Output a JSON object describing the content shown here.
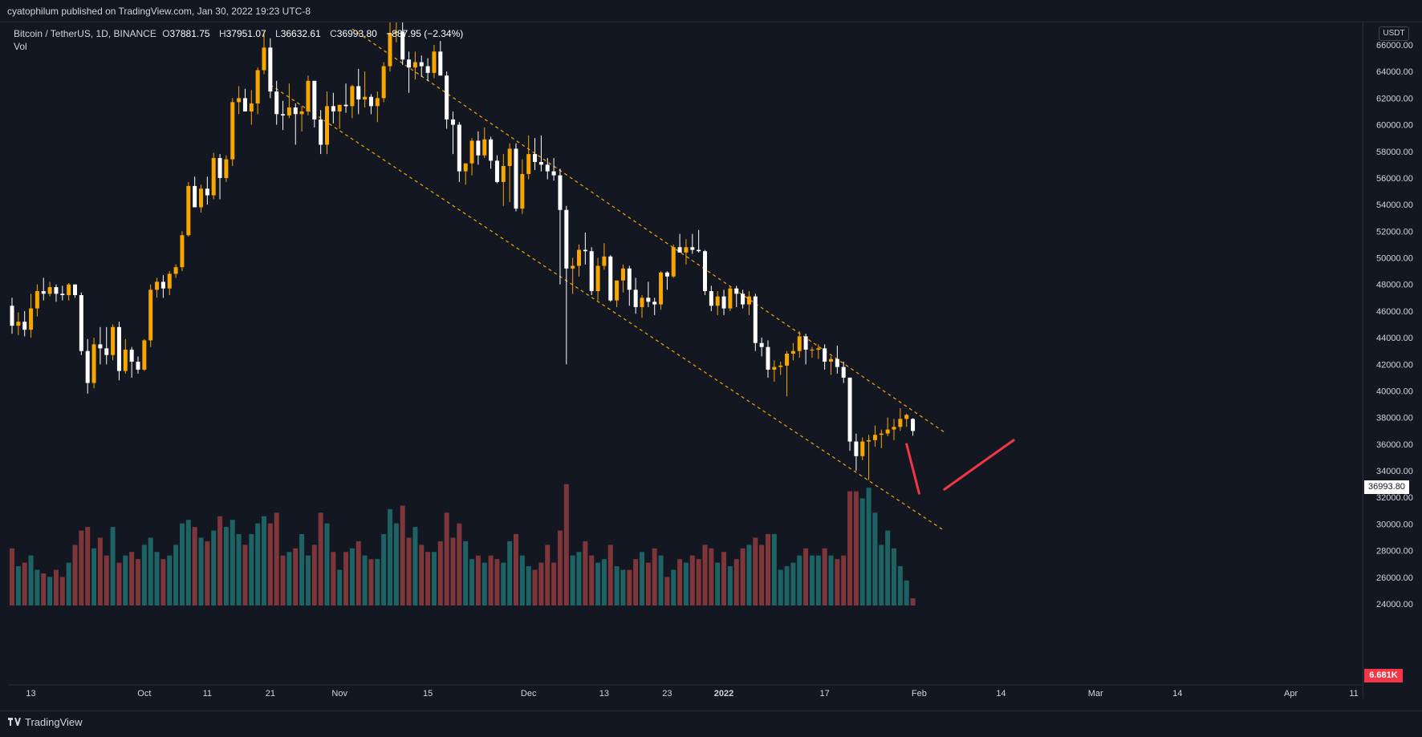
{
  "header": {
    "publisher_text": "cyatophilum published on TradingView.com, Jan 30, 2022 19:23 UTC-8"
  },
  "legend": {
    "symbol": "Bitcoin / TetherUS, 1D, BINANCE",
    "open_key": "O",
    "open_val": "37881.75",
    "high_key": "H",
    "high_val": "37951.07",
    "low_key": "L",
    "low_val": "36632.61",
    "close_key": "C",
    "close_val": "36993.80",
    "change": "−887.95 (−2.34%)",
    "volume_label": "Vol"
  },
  "price_scale": {
    "currency": "USDT",
    "last_price": "36993.80",
    "last_volume": "6.681K"
  },
  "footer": {
    "brand": "TradingView"
  },
  "colors": {
    "background": "#131722",
    "candle_up": "#f7a600",
    "candle_down": "#ffffff",
    "volume_up": "#1f6b6b",
    "volume_down": "#8b3a3e",
    "channel": "#f7a600",
    "annotation": "#f23645"
  },
  "chart_data": {
    "type": "candlestick",
    "title": "Bitcoin / TetherUS, 1D, BINANCE",
    "ylim": [
      23000,
      67500
    ],
    "yticks": [
      24000,
      26000,
      28000,
      30000,
      32000,
      34000,
      36000,
      38000,
      40000,
      42000,
      44000,
      46000,
      48000,
      50000,
      52000,
      54000,
      56000,
      58000,
      60000,
      62000,
      64000,
      66000
    ],
    "ytick_labels": [
      "24000.00",
      "26000.00",
      "28000.00",
      "30000.00",
      "32000.00",
      "34000.00",
      "36000.00",
      "38000.00",
      "40000.00",
      "42000.00",
      "44000.00",
      "46000.00",
      "48000.00",
      "50000.00",
      "52000.00",
      "54000.00",
      "56000.00",
      "58000.00",
      "60000.00",
      "62000.00",
      "64000.00",
      "66000.00"
    ],
    "x_start_date": "2021-09-10",
    "xticks": [
      {
        "date": "2021-09-13",
        "label": "13",
        "bold": false
      },
      {
        "date": "2021-10-01",
        "label": "Oct",
        "bold": false
      },
      {
        "date": "2021-10-11",
        "label": "11",
        "bold": false
      },
      {
        "date": "2021-10-21",
        "label": "21",
        "bold": false
      },
      {
        "date": "2021-11-01",
        "label": "Nov",
        "bold": false
      },
      {
        "date": "2021-11-15",
        "label": "15",
        "bold": false
      },
      {
        "date": "2021-12-01",
        "label": "Dec",
        "bold": false
      },
      {
        "date": "2021-12-13",
        "label": "13",
        "bold": false
      },
      {
        "date": "2021-12-23",
        "label": "23",
        "bold": false
      },
      {
        "date": "2022-01-01",
        "label": "2022",
        "bold": true
      },
      {
        "date": "2022-01-17",
        "label": "17",
        "bold": false
      },
      {
        "date": "2022-02-01",
        "label": "Feb",
        "bold": false
      },
      {
        "date": "2022-02-14",
        "label": "14",
        "bold": false
      },
      {
        "date": "2022-03-01",
        "label": "Mar",
        "bold": false
      },
      {
        "date": "2022-03-14",
        "label": "14",
        "bold": false
      },
      {
        "date": "2022-04-01",
        "label": "Apr",
        "bold": false
      },
      {
        "date": "2022-04-11",
        "label": "11",
        "bold": false
      }
    ],
    "candles": [
      [
        46400,
        47000,
        44300,
        44900,
        16
      ],
      [
        44900,
        45900,
        44200,
        45200,
        11
      ],
      [
        45200,
        46000,
        44100,
        44600,
        12
      ],
      [
        44600,
        47300,
        44000,
        46200,
        14
      ],
      [
        46200,
        48000,
        45600,
        47500,
        10
      ],
      [
        47500,
        48500,
        46800,
        47300,
        9
      ],
      [
        47300,
        48200,
        47100,
        47800,
        8
      ],
      [
        47800,
        48000,
        46700,
        47300,
        10
      ],
      [
        47300,
        47900,
        46800,
        47200,
        8
      ],
      [
        47200,
        48100,
        46800,
        48000,
        12
      ],
      [
        48000,
        48000,
        47000,
        47200,
        17
      ],
      [
        47200,
        47400,
        42700,
        43000,
        21
      ],
      [
        43000,
        43900,
        39800,
        40600,
        22
      ],
      [
        40600,
        44000,
        40200,
        43500,
        16
      ],
      [
        43500,
        44800,
        42000,
        43200,
        19
      ],
      [
        43200,
        44800,
        42000,
        42700,
        14
      ],
      [
        42700,
        45000,
        42300,
        44800,
        22
      ],
      [
        44800,
        45200,
        40800,
        41500,
        12
      ],
      [
        41500,
        43900,
        41300,
        43100,
        14
      ],
      [
        43100,
        43300,
        41000,
        42200,
        15
      ],
      [
        42200,
        42600,
        41300,
        41600,
        13
      ],
      [
        41600,
        43900,
        41500,
        43800,
        17
      ],
      [
        43800,
        48000,
        43300,
        47600,
        19
      ],
      [
        47600,
        48500,
        47000,
        48200,
        15
      ],
      [
        48200,
        48700,
        47000,
        47700,
        13
      ],
      [
        47700,
        49000,
        47200,
        48800,
        14
      ],
      [
        48800,
        49500,
        48500,
        49300,
        17
      ],
      [
        49300,
        52000,
        49000,
        51700,
        23
      ],
      [
        51700,
        55700,
        51600,
        55400,
        24
      ],
      [
        55400,
        56100,
        53900,
        53800,
        22
      ],
      [
        53800,
        55500,
        53400,
        55200,
        19
      ],
      [
        55200,
        56100,
        54000,
        54700,
        18
      ],
      [
        54700,
        57900,
        54400,
        57500,
        21
      ],
      [
        57500,
        57800,
        54400,
        56000,
        25
      ],
      [
        56000,
        57700,
        55700,
        57400,
        22
      ],
      [
        57400,
        62000,
        56900,
        61700,
        24
      ],
      [
        61700,
        62900,
        60800,
        62000,
        20
      ],
      [
        62000,
        62700,
        61300,
        61000,
        17
      ],
      [
        61000,
        62600,
        60000,
        61600,
        20
      ],
      [
        61600,
        64300,
        60800,
        64100,
        23
      ],
      [
        64100,
        67000,
        63800,
        65800,
        25
      ],
      [
        65800,
        66500,
        62000,
        62500,
        23
      ],
      [
        62500,
        63300,
        60000,
        60800,
        26
      ],
      [
        60800,
        61800,
        59600,
        60700,
        14
      ],
      [
        60700,
        63100,
        60500,
        61300,
        15
      ],
      [
        61300,
        61600,
        58500,
        60800,
        16
      ],
      [
        60800,
        61400,
        59500,
        61000,
        20
      ],
      [
        61000,
        63700,
        60700,
        63300,
        14
      ],
      [
        63300,
        63300,
        59800,
        60400,
        17
      ],
      [
        60400,
        61100,
        57800,
        58500,
        26
      ],
      [
        58500,
        62500,
        57800,
        61400,
        23
      ],
      [
        61400,
        62400,
        60100,
        61000,
        15
      ],
      [
        61000,
        61500,
        59700,
        61500,
        10
      ],
      [
        61500,
        63100,
        60900,
        61400,
        15
      ],
      [
        61400,
        63000,
        60500,
        62900,
        16
      ],
      [
        62900,
        64200,
        60800,
        61900,
        18
      ],
      [
        61900,
        64000,
        61300,
        62100,
        14
      ],
      [
        62100,
        62300,
        60800,
        61400,
        13
      ],
      [
        61400,
        62500,
        60200,
        62000,
        13
      ],
      [
        62000,
        64700,
        61700,
        64400,
        20
      ],
      [
        64400,
        67800,
        64000,
        66900,
        27
      ],
      [
        66900,
        69000,
        66200,
        67000,
        23
      ],
      [
        67000,
        67800,
        64500,
        64900,
        28
      ],
      [
        64900,
        65500,
        62400,
        64300,
        19
      ],
      [
        64300,
        65500,
        63400,
        64700,
        22
      ],
      [
        64700,
        65200,
        63600,
        64400,
        17
      ],
      [
        64400,
        65000,
        63300,
        63900,
        15
      ],
      [
        63900,
        66000,
        63500,
        65500,
        15
      ],
      [
        65500,
        66300,
        63700,
        63700,
        18
      ],
      [
        63700,
        64000,
        59700,
        60400,
        26
      ],
      [
        60400,
        61000,
        57800,
        60000,
        19
      ],
      [
        60000,
        60200,
        55700,
        56500,
        23
      ],
      [
        56500,
        57100,
        55500,
        57100,
        18
      ],
      [
        57100,
        59000,
        56200,
        58800,
        13
      ],
      [
        58800,
        59500,
        57000,
        57700,
        14
      ],
      [
        57700,
        59800,
        57500,
        58900,
        12
      ],
      [
        58900,
        59100,
        56700,
        57300,
        14
      ],
      [
        57300,
        57700,
        55600,
        55700,
        13
      ],
      [
        55700,
        57800,
        53900,
        56900,
        12
      ],
      [
        56900,
        58600,
        54200,
        58200,
        18
      ],
      [
        58200,
        58600,
        53500,
        53700,
        20
      ],
      [
        53700,
        57400,
        53300,
        56300,
        14
      ],
      [
        56300,
        59200,
        55900,
        57800,
        11
      ],
      [
        57800,
        59000,
        56600,
        57200,
        10
      ],
      [
        57200,
        59200,
        56500,
        57000,
        12
      ],
      [
        57000,
        57500,
        55900,
        56500,
        17
      ],
      [
        56500,
        57500,
        55800,
        56200,
        12
      ],
      [
        56200,
        56700,
        48000,
        53600,
        21
      ],
      [
        53600,
        53900,
        42000,
        49200,
        34
      ],
      [
        49200,
        50000,
        47300,
        49400,
        14
      ],
      [
        49400,
        51000,
        48600,
        50600,
        15
      ],
      [
        50600,
        51900,
        49500,
        50500,
        18
      ],
      [
        50500,
        50800,
        47200,
        47500,
        14
      ],
      [
        47500,
        50000,
        46800,
        49400,
        12
      ],
      [
        49400,
        51100,
        49100,
        50100,
        13
      ],
      [
        50100,
        50200,
        46700,
        46800,
        17
      ],
      [
        46800,
        48200,
        46300,
        48300,
        11
      ],
      [
        48300,
        49500,
        47400,
        49200,
        10
      ],
      [
        49200,
        49400,
        46400,
        47600,
        10
      ],
      [
        47600,
        48500,
        45800,
        46300,
        13
      ],
      [
        46300,
        47200,
        45500,
        47000,
        15
      ],
      [
        47000,
        48200,
        46300,
        46700,
        12
      ],
      [
        46700,
        47000,
        45700,
        46500,
        16
      ],
      [
        46500,
        49000,
        46100,
        48900,
        14
      ],
      [
        48900,
        49000,
        47600,
        48600,
        8
      ],
      [
        48600,
        51000,
        48500,
        50800,
        10
      ],
      [
        50800,
        51800,
        50400,
        50400,
        13
      ],
      [
        50400,
        51400,
        49500,
        50800,
        12
      ],
      [
        50800,
        51800,
        50300,
        50600,
        14
      ],
      [
        50600,
        52100,
        50400,
        50500,
        13
      ],
      [
        50500,
        50600,
        47200,
        47500,
        17
      ],
      [
        47500,
        47900,
        46000,
        46400,
        16
      ],
      [
        46400,
        47500,
        45700,
        47100,
        12
      ],
      [
        47100,
        47600,
        45700,
        46200,
        15
      ],
      [
        46200,
        47900,
        46000,
        47700,
        11
      ],
      [
        47700,
        47900,
        46300,
        47300,
        13
      ],
      [
        47300,
        47600,
        46200,
        46500,
        16
      ],
      [
        46500,
        47500,
        45700,
        47100,
        17
      ],
      [
        47100,
        47300,
        43000,
        43600,
        19
      ],
      [
        43600,
        44000,
        42600,
        43300,
        17
      ],
      [
        43300,
        43800,
        41000,
        41600,
        20
      ],
      [
        41600,
        42300,
        40700,
        41800,
        20
      ],
      [
        41800,
        42200,
        41200,
        41900,
        10
      ],
      [
        41900,
        43000,
        39600,
        42800,
        11
      ],
      [
        42800,
        43600,
        42300,
        43000,
        12
      ],
      [
        43000,
        44500,
        42500,
        44100,
        14
      ],
      [
        44100,
        44300,
        42000,
        43100,
        16
      ],
      [
        43100,
        43300,
        42500,
        43100,
        14
      ],
      [
        43100,
        43500,
        42400,
        43200,
        14
      ],
      [
        43200,
        43500,
        41600,
        42200,
        16
      ],
      [
        42200,
        42600,
        41200,
        42400,
        14
      ],
      [
        42400,
        43400,
        41300,
        41800,
        13
      ],
      [
        41800,
        42200,
        40600,
        41000,
        14
      ],
      [
        41000,
        41000,
        35500,
        36200,
        32
      ],
      [
        36200,
        36800,
        34000,
        35100,
        32
      ],
      [
        35100,
        36500,
        34800,
        36200,
        30
      ],
      [
        36200,
        36700,
        33300,
        36300,
        33
      ],
      [
        36300,
        37400,
        35800,
        36700,
        26
      ],
      [
        36700,
        37100,
        35700,
        36800,
        17
      ],
      [
        36800,
        38000,
        36600,
        37100,
        21
      ],
      [
        37100,
        37900,
        36300,
        37300,
        16
      ],
      [
        37300,
        38700,
        37000,
        37900,
        11
      ],
      [
        37900,
        38300,
        37300,
        38200,
        7
      ],
      [
        37900,
        37950,
        36630,
        36990,
        2
      ]
    ],
    "channel": {
      "upper": [
        [
          "2021-11-03",
          67200
        ],
        [
          "2022-02-05",
          36900
        ]
      ],
      "lower": [
        [
          "2021-10-21",
          63000
        ],
        [
          "2022-02-05",
          29500
        ]
      ]
    },
    "annotation_path": [
      [
        "2022-01-30",
        36000
      ],
      [
        "2022-02-01",
        32300
      ],
      [
        "2022-02-05",
        32600
      ],
      [
        "2022-02-13",
        35300
      ],
      [
        "2022-02-16",
        36300
      ]
    ]
  }
}
